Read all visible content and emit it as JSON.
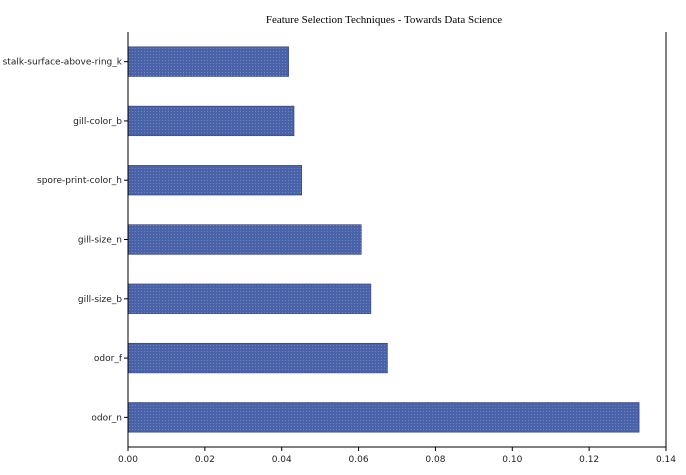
{
  "chart_data": {
    "type": "bar",
    "orientation": "horizontal",
    "title": "Feature Selection Techniques - Towards Data Science",
    "xlabel": "",
    "ylabel": "",
    "categories": [
      "odor_n",
      "odor_f",
      "gill-size_b",
      "gill-size_n",
      "spore-print-color_h",
      "gill-color_b",
      "stalk-surface-above-ring_k"
    ],
    "values": [
      0.133,
      0.0675,
      0.0632,
      0.0607,
      0.0452,
      0.0432,
      0.0418
    ],
    "xlim": [
      0,
      0.14
    ],
    "x_ticks": [
      "0.00",
      "0.02",
      "0.04",
      "0.06",
      "0.08",
      "0.10",
      "0.12",
      "0.14"
    ],
    "bar_color": "#4a63a8",
    "bar_edge_color": "#2f3f7a",
    "grid": false,
    "legend": "none"
  }
}
